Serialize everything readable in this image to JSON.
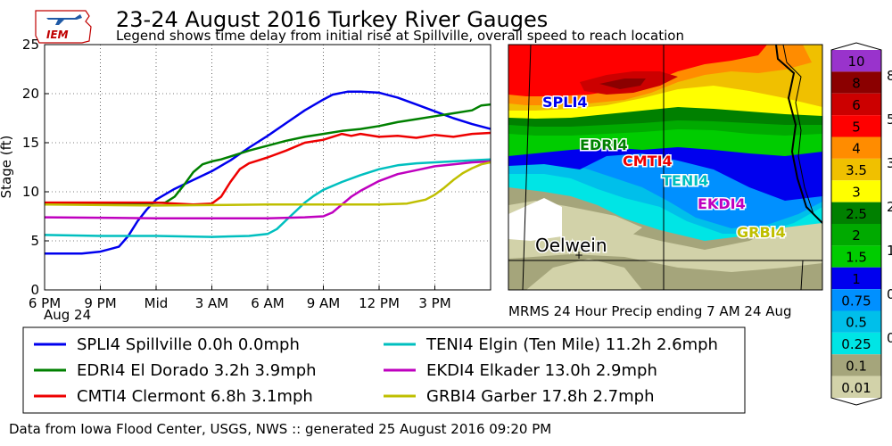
{
  "title": "23-24 August 2016 Turkey River Gauges",
  "subtitle": "Legend shows time delay from initial rise at Spillville, overall speed to reach location",
  "logo_text": "IEM",
  "footer": "Data from Iowa Flood Center, USGS, NWS :: generated 25 August 2016 09:20 PM",
  "chart_data": [
    {
      "type": "line",
      "ylabel": "Stage (ft)",
      "xlim": [
        0,
        24
      ],
      "ylim": [
        0,
        25
      ],
      "x_ticks": [
        {
          "x": 0,
          "label": "6 PM"
        },
        {
          "x": 3,
          "label": "9 PM"
        },
        {
          "x": 6,
          "label": "Mid"
        },
        {
          "x": 9,
          "label": "3 AM"
        },
        {
          "x": 12,
          "label": "6 AM"
        },
        {
          "x": 15,
          "label": "9 AM"
        },
        {
          "x": 18,
          "label": "12 PM"
        },
        {
          "x": 21,
          "label": "3 PM"
        }
      ],
      "date_label": "Aug 24",
      "y_ticks": [
        0,
        5,
        10,
        15,
        20,
        25
      ],
      "grid": true,
      "x_units": "hours after 6 PM 23 Aug",
      "series": [
        {
          "name": "SPLI4 Spillville 0.0h 0.0mph",
          "color": "#0000ee",
          "x": [
            0,
            2,
            3,
            4,
            4.5,
            5,
            5.5,
            6,
            7,
            8,
            9,
            10,
            11,
            12,
            13,
            14,
            15,
            15.5,
            16.3,
            17,
            18,
            19,
            20,
            21,
            22,
            23,
            24
          ],
          "y": [
            3.7,
            3.7,
            3.9,
            4.4,
            5.5,
            7,
            8.2,
            9.2,
            10.3,
            11.2,
            12.1,
            13.2,
            14.5,
            15.7,
            17,
            18.3,
            19.4,
            19.9,
            20.2,
            20.2,
            20.1,
            19.6,
            18.9,
            18.2,
            17.5,
            16.9,
            16.4
          ]
        },
        {
          "name": "EDRI4 El Dorado 3.2h 3.9mph",
          "color": "#008000",
          "x": [
            0,
            5,
            6.5,
            7,
            7.5,
            8,
            8.5,
            9,
            9.5,
            10,
            11,
            12,
            13,
            14,
            15,
            16,
            17,
            18,
            19,
            20,
            21,
            22,
            23,
            23.5,
            24
          ],
          "y": [
            8.8,
            8.8,
            8.9,
            9.5,
            10.7,
            12,
            12.8,
            13.1,
            13.3,
            13.6,
            14.2,
            14.7,
            15.2,
            15.6,
            15.9,
            16.2,
            16.4,
            16.7,
            17.1,
            17.4,
            17.7,
            18.0,
            18.3,
            18.8,
            18.9
          ]
        },
        {
          "name": "CMTI4 Clermont 6.8h 3.1mph",
          "color": "#ee0000",
          "x": [
            0,
            6,
            8,
            9,
            9.5,
            10,
            10.5,
            11,
            11.5,
            12,
            13,
            14,
            15,
            15.5,
            16,
            16.5,
            17,
            18,
            19,
            20,
            21,
            22,
            23,
            24
          ],
          "y": [
            8.9,
            8.9,
            8.7,
            8.8,
            9.5,
            11,
            12.3,
            12.9,
            13.2,
            13.5,
            14.2,
            15.0,
            15.3,
            15.6,
            15.9,
            15.7,
            15.9,
            15.6,
            15.7,
            15.5,
            15.8,
            15.6,
            15.9,
            16.0
          ]
        },
        {
          "name": "TENI4 Elgin (Ten Mile) 11.2h 2.6mph",
          "color": "#00bfbf",
          "x": [
            0,
            3,
            6,
            9,
            11,
            12,
            12.5,
            13,
            13.5,
            14,
            14.5,
            15,
            16,
            17,
            18,
            19,
            20,
            21,
            22,
            23,
            24
          ],
          "y": [
            5.6,
            5.5,
            5.5,
            5.4,
            5.5,
            5.7,
            6.2,
            7.1,
            8.0,
            8.9,
            9.6,
            10.2,
            11.0,
            11.7,
            12.3,
            12.7,
            12.9,
            13.0,
            13.1,
            13.2,
            13.3
          ]
        },
        {
          "name": "EKDI4 Elkader 13.0h 2.9mph",
          "color": "#bf00bf",
          "x": [
            0,
            6,
            12,
            14,
            15,
            15.5,
            16,
            16.5,
            17,
            18,
            19,
            20,
            21,
            22,
            23,
            24
          ],
          "y": [
            7.4,
            7.3,
            7.3,
            7.4,
            7.5,
            7.9,
            8.7,
            9.5,
            10.1,
            11.1,
            11.8,
            12.2,
            12.6,
            12.8,
            13.0,
            13.1
          ]
        },
        {
          "name": "GRBI4 Garber 17.8h 2.7mph",
          "color": "#bfbf00",
          "x": [
            0,
            6,
            12,
            18,
            19.5,
            20.5,
            21,
            21.5,
            22,
            22.5,
            23,
            23.5,
            24
          ],
          "y": [
            8.7,
            8.6,
            8.7,
            8.7,
            8.8,
            9.2,
            9.7,
            10.4,
            11.2,
            11.9,
            12.4,
            12.8,
            13.0
          ]
        }
      ]
    }
  ],
  "map": {
    "caption": "MRMS 24 Hour Precip ending 7 AM 24 Aug",
    "city": "Oelwein",
    "stations": [
      {
        "id": "SPLI4",
        "color": "#0000ee"
      },
      {
        "id": "EDRI4",
        "color": "#008000"
      },
      {
        "id": "CMTI4",
        "color": "#ee0000"
      },
      {
        "id": "TENI4",
        "color": "#00bfbf"
      },
      {
        "id": "EKDI4",
        "color": "#bf00bf"
      },
      {
        "id": "GRBI4",
        "color": "#bfbf00"
      }
    ]
  },
  "colorbar": {
    "levels": [
      "0.01",
      "0.1",
      "0.25",
      "0.5",
      "0.75",
      "1",
      "1.5",
      "2",
      "2.5",
      "3",
      "3.5",
      "4",
      "5",
      "6",
      "8",
      "10"
    ],
    "colors": [
      "#d2d2a9",
      "#a5a57b",
      "#00e5e5",
      "#00bfea",
      "#0090ff",
      "#0000ee",
      "#00cc00",
      "#00aa00",
      "#008000",
      "#ffff00",
      "#f0c000",
      "#ff8c00",
      "#ff0000",
      "#cc0000",
      "#8b0000",
      "#9933cc"
    ],
    "right_labels": [
      "8",
      "5",
      "3",
      "2",
      "1",
      "0",
      "0"
    ]
  }
}
